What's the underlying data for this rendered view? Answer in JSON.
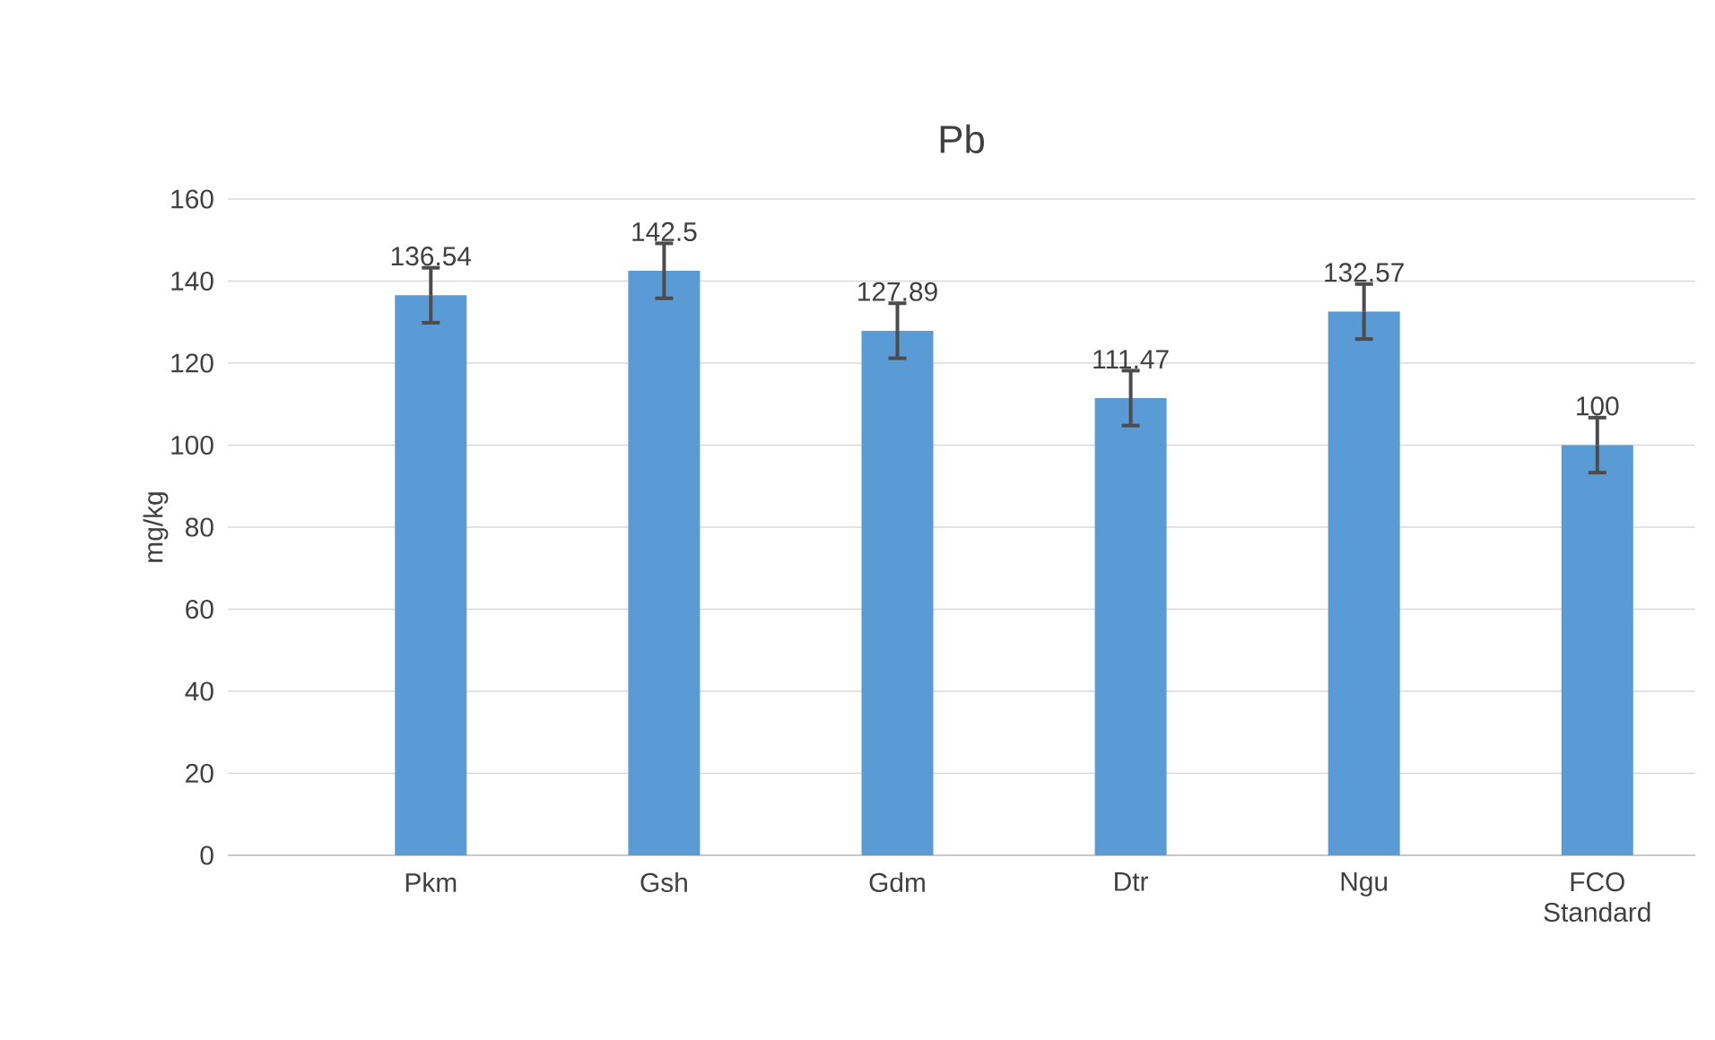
{
  "chart_data": {
    "type": "bar",
    "title": "Pb",
    "ylabel": "mg/kg",
    "categories": [
      "Pkm",
      "Gsh",
      "Gdm",
      "Dtr",
      "Ngu",
      "FCO Standard"
    ],
    "values": [
      136.54,
      142.5,
      127.89,
      111.47,
      132.57,
      100
    ],
    "errors": [
      6.7,
      6.7,
      6.7,
      6.7,
      6.7,
      6.7
    ],
    "color": "#5b9bd5",
    "ylim": [
      0,
      160
    ],
    "yticks": [
      0,
      20,
      40,
      60,
      80,
      100,
      120,
      140,
      160
    ],
    "grid": "y",
    "data_labels": true
  }
}
